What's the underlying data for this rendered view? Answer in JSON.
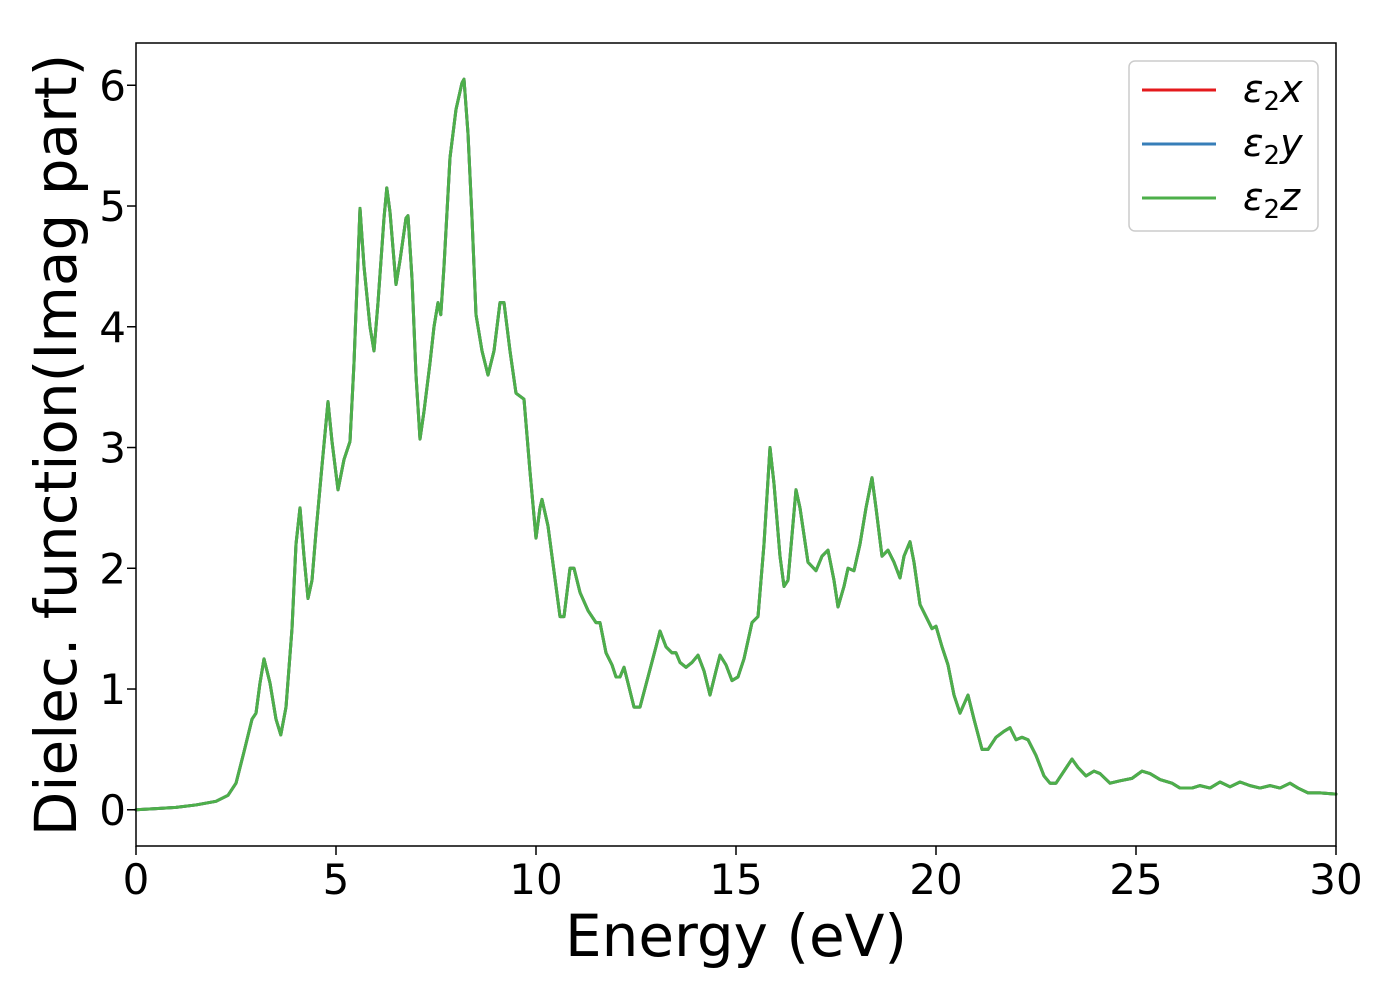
{
  "chart_data": {
    "type": "line",
    "title": "",
    "xlabel": "Energy (eV)",
    "ylabel": "Dielec. function(Imag part)",
    "xlim": [
      0,
      30
    ],
    "ylim": [
      -0.3,
      6.35
    ],
    "x_ticks": [
      0,
      5,
      10,
      15,
      20,
      25,
      30
    ],
    "y_ticks": [
      0,
      1,
      2,
      3,
      4,
      5,
      6
    ],
    "grid": false,
    "legend_position": "top-right",
    "series": [
      {
        "name": "ε₂x",
        "label_base": "ε",
        "label_sub": "2",
        "label_var": "x",
        "color": "#e41a1c",
        "data_ref": "shared"
      },
      {
        "name": "ε₂y",
        "label_base": "ε",
        "label_sub": "2",
        "label_var": "y",
        "color": "#377eb8",
        "data_ref": "shared"
      },
      {
        "name": "ε₂z",
        "label_base": "ε",
        "label_sub": "2",
        "label_var": "z",
        "color": "#4daf4a",
        "data_ref": "shared"
      }
    ],
    "shared_points": [
      [
        0.0,
        0.0
      ],
      [
        0.5,
        0.01
      ],
      [
        1.0,
        0.02
      ],
      [
        1.5,
        0.04
      ],
      [
        2.0,
        0.07
      ],
      [
        2.3,
        0.12
      ],
      [
        2.5,
        0.22
      ],
      [
        2.7,
        0.48
      ],
      [
        2.9,
        0.75
      ],
      [
        3.0,
        0.8
      ],
      [
        3.1,
        1.05
      ],
      [
        3.2,
        1.25
      ],
      [
        3.35,
        1.05
      ],
      [
        3.5,
        0.75
      ],
      [
        3.62,
        0.62
      ],
      [
        3.75,
        0.85
      ],
      [
        3.9,
        1.5
      ],
      [
        4.0,
        2.2
      ],
      [
        4.1,
        2.5
      ],
      [
        4.2,
        2.1
      ],
      [
        4.3,
        1.75
      ],
      [
        4.4,
        1.9
      ],
      [
        4.5,
        2.3
      ],
      [
        4.65,
        2.85
      ],
      [
        4.8,
        3.38
      ],
      [
        4.9,
        3.05
      ],
      [
        5.05,
        2.65
      ],
      [
        5.2,
        2.9
      ],
      [
        5.35,
        3.05
      ],
      [
        5.45,
        3.7
      ],
      [
        5.6,
        4.98
      ],
      [
        5.7,
        4.5
      ],
      [
        5.85,
        4.0
      ],
      [
        5.95,
        3.8
      ],
      [
        6.05,
        4.2
      ],
      [
        6.2,
        4.9
      ],
      [
        6.27,
        5.15
      ],
      [
        6.35,
        4.95
      ],
      [
        6.5,
        4.35
      ],
      [
        6.6,
        4.55
      ],
      [
        6.75,
        4.9
      ],
      [
        6.8,
        4.92
      ],
      [
        6.9,
        4.4
      ],
      [
        7.0,
        3.6
      ],
      [
        7.1,
        3.07
      ],
      [
        7.2,
        3.3
      ],
      [
        7.35,
        3.7
      ],
      [
        7.45,
        4.0
      ],
      [
        7.55,
        4.2
      ],
      [
        7.62,
        4.1
      ],
      [
        7.7,
        4.5
      ],
      [
        7.85,
        5.4
      ],
      [
        8.0,
        5.8
      ],
      [
        8.15,
        6.02
      ],
      [
        8.2,
        6.05
      ],
      [
        8.3,
        5.6
      ],
      [
        8.4,
        4.9
      ],
      [
        8.5,
        4.1
      ],
      [
        8.65,
        3.8
      ],
      [
        8.8,
        3.6
      ],
      [
        8.95,
        3.8
      ],
      [
        9.1,
        4.2
      ],
      [
        9.2,
        4.2
      ],
      [
        9.35,
        3.8
      ],
      [
        9.5,
        3.45
      ],
      [
        9.7,
        3.4
      ],
      [
        9.85,
        2.8
      ],
      [
        10.0,
        2.25
      ],
      [
        10.1,
        2.5
      ],
      [
        10.15,
        2.57
      ],
      [
        10.3,
        2.35
      ],
      [
        10.5,
        1.85
      ],
      [
        10.6,
        1.6
      ],
      [
        10.7,
        1.6
      ],
      [
        10.85,
        2.0
      ],
      [
        10.95,
        2.0
      ],
      [
        11.1,
        1.8
      ],
      [
        11.3,
        1.65
      ],
      [
        11.5,
        1.55
      ],
      [
        11.6,
        1.55
      ],
      [
        11.75,
        1.3
      ],
      [
        11.9,
        1.2
      ],
      [
        12.0,
        1.1
      ],
      [
        12.1,
        1.1
      ],
      [
        12.2,
        1.18
      ],
      [
        12.3,
        1.05
      ],
      [
        12.45,
        0.85
      ],
      [
        12.6,
        0.85
      ],
      [
        12.8,
        1.1
      ],
      [
        13.0,
        1.35
      ],
      [
        13.1,
        1.48
      ],
      [
        13.25,
        1.35
      ],
      [
        13.4,
        1.3
      ],
      [
        13.5,
        1.3
      ],
      [
        13.6,
        1.22
      ],
      [
        13.75,
        1.18
      ],
      [
        13.9,
        1.22
      ],
      [
        14.05,
        1.28
      ],
      [
        14.2,
        1.15
      ],
      [
        14.35,
        0.95
      ],
      [
        14.5,
        1.15
      ],
      [
        14.6,
        1.28
      ],
      [
        14.75,
        1.2
      ],
      [
        14.9,
        1.07
      ],
      [
        15.05,
        1.1
      ],
      [
        15.2,
        1.25
      ],
      [
        15.4,
        1.55
      ],
      [
        15.55,
        1.6
      ],
      [
        15.7,
        2.2
      ],
      [
        15.85,
        3.0
      ],
      [
        15.95,
        2.7
      ],
      [
        16.1,
        2.1
      ],
      [
        16.2,
        1.85
      ],
      [
        16.3,
        1.9
      ],
      [
        16.5,
        2.65
      ],
      [
        16.6,
        2.5
      ],
      [
        16.8,
        2.05
      ],
      [
        17.0,
        1.98
      ],
      [
        17.15,
        2.1
      ],
      [
        17.3,
        2.15
      ],
      [
        17.45,
        1.9
      ],
      [
        17.55,
        1.68
      ],
      [
        17.7,
        1.85
      ],
      [
        17.8,
        2.0
      ],
      [
        17.95,
        1.98
      ],
      [
        18.1,
        2.2
      ],
      [
        18.25,
        2.5
      ],
      [
        18.4,
        2.75
      ],
      [
        18.5,
        2.5
      ],
      [
        18.65,
        2.1
      ],
      [
        18.8,
        2.15
      ],
      [
        18.95,
        2.05
      ],
      [
        19.1,
        1.92
      ],
      [
        19.2,
        2.1
      ],
      [
        19.35,
        2.22
      ],
      [
        19.45,
        2.05
      ],
      [
        19.6,
        1.7
      ],
      [
        19.75,
        1.6
      ],
      [
        19.9,
        1.5
      ],
      [
        20.0,
        1.52
      ],
      [
        20.15,
        1.35
      ],
      [
        20.3,
        1.2
      ],
      [
        20.45,
        0.95
      ],
      [
        20.6,
        0.8
      ],
      [
        20.8,
        0.95
      ],
      [
        20.95,
        0.75
      ],
      [
        21.15,
        0.5
      ],
      [
        21.3,
        0.5
      ],
      [
        21.5,
        0.6
      ],
      [
        21.7,
        0.65
      ],
      [
        21.85,
        0.68
      ],
      [
        22.0,
        0.58
      ],
      [
        22.15,
        0.6
      ],
      [
        22.3,
        0.58
      ],
      [
        22.5,
        0.45
      ],
      [
        22.7,
        0.28
      ],
      [
        22.85,
        0.22
      ],
      [
        23.0,
        0.22
      ],
      [
        23.2,
        0.32
      ],
      [
        23.4,
        0.42
      ],
      [
        23.55,
        0.35
      ],
      [
        23.75,
        0.28
      ],
      [
        23.95,
        0.32
      ],
      [
        24.1,
        0.3
      ],
      [
        24.35,
        0.22
      ],
      [
        24.6,
        0.24
      ],
      [
        24.9,
        0.26
      ],
      [
        25.15,
        0.32
      ],
      [
        25.35,
        0.3
      ],
      [
        25.6,
        0.25
      ],
      [
        25.9,
        0.22
      ],
      [
        26.1,
        0.18
      ],
      [
        26.4,
        0.18
      ],
      [
        26.6,
        0.2
      ],
      [
        26.85,
        0.18
      ],
      [
        27.1,
        0.23
      ],
      [
        27.35,
        0.19
      ],
      [
        27.6,
        0.23
      ],
      [
        27.85,
        0.2
      ],
      [
        28.1,
        0.18
      ],
      [
        28.35,
        0.2
      ],
      [
        28.6,
        0.18
      ],
      [
        28.85,
        0.22
      ],
      [
        29.05,
        0.18
      ],
      [
        29.3,
        0.14
      ],
      [
        29.6,
        0.14
      ],
      [
        30.0,
        0.13
      ]
    ]
  }
}
